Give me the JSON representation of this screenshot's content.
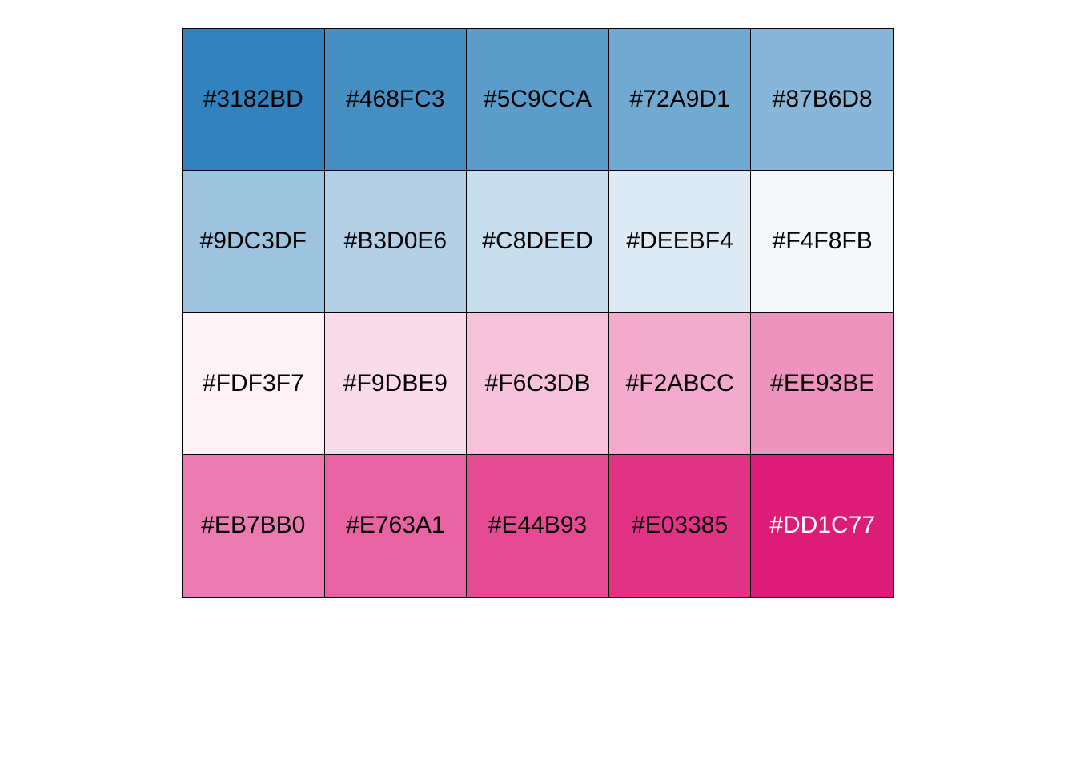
{
  "swatches": [
    {
      "label": "#3182BD",
      "color": "#3182BD",
      "text_color": "#000000"
    },
    {
      "label": "#468FC3",
      "color": "#468FC3",
      "text_color": "#000000"
    },
    {
      "label": "#5C9CCA",
      "color": "#5C9CCA",
      "text_color": "#000000"
    },
    {
      "label": "#72A9D1",
      "color": "#72A9D1",
      "text_color": "#000000"
    },
    {
      "label": "#87B6D8",
      "color": "#87B6D8",
      "text_color": "#000000"
    },
    {
      "label": "#9DC3DF",
      "color": "#9DC3DF",
      "text_color": "#000000"
    },
    {
      "label": "#B3D0E6",
      "color": "#B3D0E6",
      "text_color": "#000000"
    },
    {
      "label": "#C8DEED",
      "color": "#C8DEED",
      "text_color": "#000000"
    },
    {
      "label": "#DEEBF4",
      "color": "#DEEBF4",
      "text_color": "#000000"
    },
    {
      "label": "#F4F8FB",
      "color": "#F4F8FB",
      "text_color": "#000000"
    },
    {
      "label": "#FDF3F7",
      "color": "#FDF3F7",
      "text_color": "#000000"
    },
    {
      "label": "#F9DBE9",
      "color": "#F9DBE9",
      "text_color": "#000000"
    },
    {
      "label": "#F6C3DB",
      "color": "#F6C3DB",
      "text_color": "#000000"
    },
    {
      "label": "#F2ABCC",
      "color": "#F2ABCC",
      "text_color": "#000000"
    },
    {
      "label": "#EE93BE",
      "color": "#EE93BE",
      "text_color": "#000000"
    },
    {
      "label": "#EB7BB0",
      "color": "#EB7BB0",
      "text_color": "#000000"
    },
    {
      "label": "#E763A1",
      "color": "#E763A1",
      "text_color": "#000000"
    },
    {
      "label": "#E44B93",
      "color": "#E44B93",
      "text_color": "#000000"
    },
    {
      "label": "#E03385",
      "color": "#E03385",
      "text_color": "#000000"
    },
    {
      "label": "#DD1C77",
      "color": "#DD1C77",
      "text_color": "#FFFFFF"
    }
  ]
}
